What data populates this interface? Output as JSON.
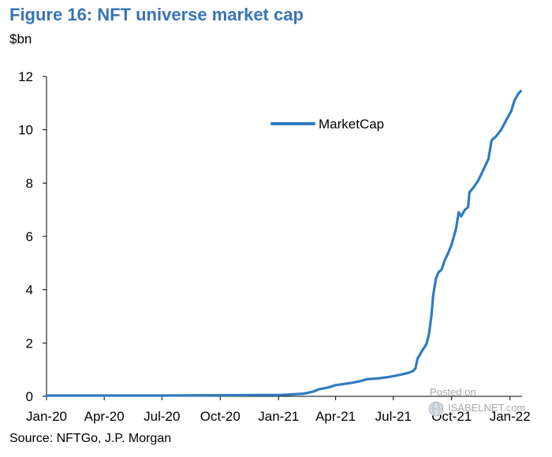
{
  "header": {
    "title": "Figure 16: NFT universe market cap",
    "unit": "$bn"
  },
  "footer": {
    "source": "Source: NFTGo, J.P. Morgan"
  },
  "watermark": {
    "posted": "Posted on",
    "brand": "ISABELNET.com"
  },
  "colors": {
    "title": "#3a73b5",
    "series": "#2f7bbf",
    "axis": "#000000"
  },
  "chart_data": {
    "type": "line",
    "title": "Figure 16: NFT universe market cap",
    "ylabel": "$bn",
    "xlabel": "",
    "ylim": [
      0,
      12
    ],
    "yticks": [
      "0",
      "2",
      "4",
      "6",
      "8",
      "10",
      "12"
    ],
    "xlim": [
      "2020-01-01",
      "2022-01-20"
    ],
    "xticks": [
      {
        "label": "Jan-20",
        "date": "2020-01-01"
      },
      {
        "label": "Apr-20",
        "date": "2020-04-01"
      },
      {
        "label": "Jul-20",
        "date": "2020-07-01"
      },
      {
        "label": "Oct-20",
        "date": "2020-10-01"
      },
      {
        "label": "Jan-21",
        "date": "2021-01-01"
      },
      {
        "label": "Apr-21",
        "date": "2021-04-01"
      },
      {
        "label": "Jul-21",
        "date": "2021-07-01"
      },
      {
        "label": "Oct-21",
        "date": "2021-10-01"
      },
      {
        "label": "Jan-22",
        "date": "2022-01-01"
      }
    ],
    "legend": "top-right",
    "grid": false,
    "series": [
      {
        "name": "MarketCap",
        "points": [
          [
            "2020-01-01",
            0.03
          ],
          [
            "2020-04-01",
            0.03
          ],
          [
            "2020-07-01",
            0.03
          ],
          [
            "2020-10-01",
            0.04
          ],
          [
            "2020-12-01",
            0.05
          ],
          [
            "2021-01-01",
            0.05
          ],
          [
            "2021-01-20",
            0.07
          ],
          [
            "2021-02-10",
            0.1
          ],
          [
            "2021-02-25",
            0.18
          ],
          [
            "2021-03-05",
            0.26
          ],
          [
            "2021-03-20",
            0.33
          ],
          [
            "2021-04-01",
            0.42
          ],
          [
            "2021-04-25",
            0.5
          ],
          [
            "2021-05-10",
            0.57
          ],
          [
            "2021-05-20",
            0.64
          ],
          [
            "2021-06-10",
            0.68
          ],
          [
            "2021-06-25",
            0.73
          ],
          [
            "2021-07-10",
            0.8
          ],
          [
            "2021-07-25",
            0.88
          ],
          [
            "2021-08-01",
            0.95
          ],
          [
            "2021-08-05",
            1.05
          ],
          [
            "2021-08-08",
            1.4
          ],
          [
            "2021-08-15",
            1.7
          ],
          [
            "2021-08-22",
            1.95
          ],
          [
            "2021-08-26",
            2.3
          ],
          [
            "2021-08-30",
            3.0
          ],
          [
            "2021-09-02",
            3.8
          ],
          [
            "2021-09-06",
            4.4
          ],
          [
            "2021-09-10",
            4.65
          ],
          [
            "2021-09-15",
            4.75
          ],
          [
            "2021-09-20",
            5.1
          ],
          [
            "2021-09-26",
            5.4
          ],
          [
            "2021-10-01",
            5.7
          ],
          [
            "2021-10-08",
            6.3
          ],
          [
            "2021-10-12",
            6.9
          ],
          [
            "2021-10-16",
            6.75
          ],
          [
            "2021-10-22",
            7.0
          ],
          [
            "2021-10-27",
            7.1
          ],
          [
            "2021-10-29",
            7.65
          ],
          [
            "2021-11-05",
            7.85
          ],
          [
            "2021-11-12",
            8.1
          ],
          [
            "2021-11-20",
            8.5
          ],
          [
            "2021-11-28",
            8.9
          ],
          [
            "2021-12-03",
            9.6
          ],
          [
            "2021-12-10",
            9.75
          ],
          [
            "2021-12-18",
            10.0
          ],
          [
            "2021-12-27",
            10.4
          ],
          [
            "2022-01-03",
            10.7
          ],
          [
            "2022-01-08",
            11.1
          ],
          [
            "2022-01-14",
            11.35
          ],
          [
            "2022-01-18",
            11.45
          ]
        ]
      }
    ]
  }
}
